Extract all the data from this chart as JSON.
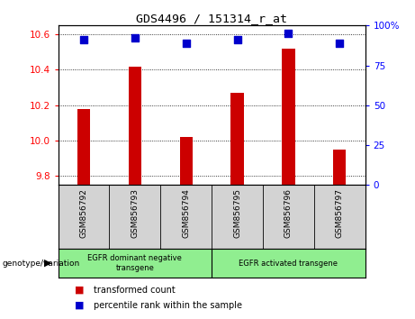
{
  "title": "GDS4496 / 151314_r_at",
  "samples": [
    "GSM856792",
    "GSM856793",
    "GSM856794",
    "GSM856795",
    "GSM856796",
    "GSM856797"
  ],
  "bar_values": [
    10.18,
    10.42,
    10.02,
    10.27,
    10.52,
    9.95
  ],
  "percentile_values": [
    91,
    92,
    89,
    91,
    95,
    89
  ],
  "ylim_left": [
    9.75,
    10.65
  ],
  "ylim_right": [
    0,
    100
  ],
  "yticks_left": [
    9.8,
    10.0,
    10.2,
    10.4,
    10.6
  ],
  "yticks_right": [
    0,
    25,
    50,
    75,
    100
  ],
  "bar_color": "#cc0000",
  "dot_color": "#0000cc",
  "group1_label": "EGFR dominant negative\ntransgene",
  "group2_label": "EGFR activated transgene",
  "group1_indices": [
    0,
    1,
    2
  ],
  "group2_indices": [
    3,
    4,
    5
  ],
  "legend1": "transformed count",
  "legend2": "percentile rank within the sample",
  "genotype_label": "genotype/variation",
  "bg_color": "#ffffff",
  "plot_bg": "#ffffff",
  "group_bg": "#90ee90",
  "sample_bg": "#d3d3d3",
  "pct_marker_size": 30,
  "bar_width": 0.25
}
